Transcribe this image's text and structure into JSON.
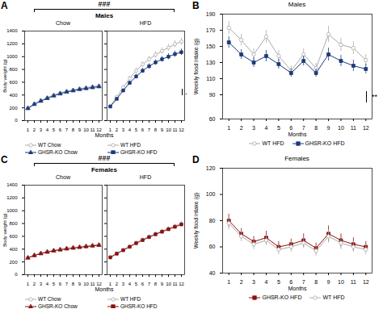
{
  "chart_data": [
    {
      "type": "line",
      "panel_label": "A",
      "title": "Males",
      "annotations": [
        "###"
      ],
      "xlabel": "Months",
      "ylabel": "Body weight (g)",
      "x": [
        1,
        2,
        3,
        4,
        5,
        6,
        7,
        8,
        9,
        10,
        11,
        12
      ],
      "xlim": [
        0.5,
        12.5
      ],
      "xticks": [
        1,
        2,
        3,
        4,
        5,
        6,
        7,
        8,
        9,
        10,
        11,
        12
      ],
      "ylim": [
        0,
        1400
      ],
      "yticks": [
        0,
        200,
        400,
        600,
        800,
        1000,
        1200,
        1400
      ],
      "grid": false,
      "subplots": [
        {
          "title": "Chow",
          "series": [
            {
              "name": "WT Chow",
              "color": "#aaaaaa",
              "marker": "circle-open",
              "values": [
                200,
                265,
                315,
                360,
                400,
                435,
                460,
                480,
                500,
                515,
                530,
                545
              ],
              "errors": [
                8,
                10,
                12,
                13,
                14,
                15,
                15,
                16,
                16,
                17,
                17,
                18
              ]
            },
            {
              "name": "GHSR-KO Chow",
              "color": "#1a3a7a",
              "marker": "triangle",
              "values": [
                190,
                255,
                305,
                348,
                388,
                420,
                448,
                468,
                488,
                503,
                518,
                532
              ],
              "errors": [
                8,
                10,
                11,
                12,
                13,
                14,
                14,
                15,
                15,
                16,
                16,
                17
              ]
            }
          ]
        },
        {
          "title": "HFD",
          "tick_labels": "x",
          "annotations": [
            "."
          ],
          "series": [
            {
              "name": "WT HFD",
              "color": "#aaaaaa",
              "marker": "circle-open",
              "values": [
                230,
                370,
                520,
                660,
                780,
                880,
                960,
                1030,
                1090,
                1140,
                1195,
                1235
              ],
              "errors": [
                15,
                20,
                28,
                33,
                38,
                42,
                45,
                47,
                48,
                50,
                52,
                55
              ]
            },
            {
              "name": "GHSR-KO HFD",
              "color": "#1a3a7a",
              "marker": "square",
              "values": [
                220,
                340,
                470,
                590,
                690,
                780,
                850,
                910,
                960,
                1000,
                1040,
                1070
              ],
              "errors": [
                14,
                18,
                25,
                30,
                34,
                37,
                40,
                42,
                44,
                46,
                47,
                49
              ]
            }
          ]
        }
      ]
    },
    {
      "type": "line",
      "panel_label": "B",
      "title": "Males",
      "annotations": [
        "**"
      ],
      "xlabel": "Months",
      "ylabel": "Weekly food intake (g)",
      "x": [
        1,
        2,
        3,
        4,
        5,
        6,
        7,
        8,
        9,
        10,
        11,
        12
      ],
      "xlim": [
        0.5,
        12.5
      ],
      "xticks": [
        1,
        2,
        3,
        4,
        5,
        6,
        7,
        8,
        9,
        10,
        11,
        12
      ],
      "ylim": [
        60,
        190
      ],
      "yticks": [
        60,
        90,
        110,
        130,
        150,
        170,
        190
      ],
      "grid": false,
      "series": [
        {
          "name": "WT HFD",
          "color": "#aaaaaa",
          "marker": "circle-open",
          "values": [
            173,
            158,
            140,
            162,
            138,
            120,
            140,
            123,
            165,
            152,
            148,
            133
          ],
          "errors": [
            8,
            7,
            7,
            8,
            7,
            6,
            7,
            6,
            10,
            8,
            8,
            7
          ]
        },
        {
          "name": "GHSR-KO HFD",
          "color": "#1a3a7a",
          "marker": "square",
          "values": [
            155,
            140,
            130,
            138,
            128,
            117,
            132,
            117,
            140,
            132,
            126,
            122
          ],
          "errors": [
            7,
            6,
            6,
            7,
            6,
            5,
            6,
            5,
            8,
            7,
            7,
            6
          ]
        }
      ]
    },
    {
      "type": "line",
      "panel_label": "C",
      "title": "Females",
      "annotations": [
        "###"
      ],
      "xlabel": "Months",
      "ylabel": "Body weight (g)",
      "x": [
        1,
        2,
        3,
        4,
        5,
        6,
        7,
        8,
        9,
        10,
        11,
        12
      ],
      "xlim": [
        0.5,
        12.5
      ],
      "xticks": [
        1,
        2,
        3,
        4,
        5,
        6,
        7,
        8,
        9,
        10,
        11,
        12
      ],
      "ylim": [
        0,
        1400
      ],
      "yticks": [
        0,
        200,
        400,
        600,
        800,
        1000,
        1200,
        1400
      ],
      "grid": false,
      "subplots": [
        {
          "title": "Chow",
          "series": [
            {
              "name": "WT Chow",
              "color": "#aaaaaa",
              "marker": "circle-open",
              "values": [
                270,
                308,
                338,
                362,
                382,
                398,
                413,
                425,
                436,
                448,
                460,
                470
              ],
              "errors": [
                9,
                10,
                11,
                12,
                12,
                13,
                13,
                14,
                14,
                15,
                15,
                15
              ]
            },
            {
              "name": "GHSR-KO Chow",
              "color": "#8b1010",
              "marker": "triangle",
              "values": [
                262,
                300,
                330,
                354,
                374,
                390,
                405,
                417,
                428,
                440,
                451,
                461
              ],
              "errors": [
                9,
                10,
                11,
                11,
                12,
                12,
                13,
                13,
                14,
                14,
                15,
                15
              ]
            }
          ]
        },
        {
          "title": "HFD",
          "tick_labels": "x",
          "series": [
            {
              "name": "WT HFD",
              "color": "#aaaaaa",
              "marker": "circle-open",
              "values": [
                278,
                335,
                390,
                445,
                502,
                550,
                598,
                642,
                683,
                722,
                762,
                800
              ],
              "errors": [
                11,
                13,
                15,
                17,
                19,
                21,
                23,
                24,
                25,
                26,
                27,
                29
              ]
            },
            {
              "name": "GHSR-KO HFD",
              "color": "#8b1010",
              "marker": "square",
              "values": [
                270,
                328,
                382,
                436,
                492,
                540,
                587,
                631,
                671,
                710,
                748,
                785
              ],
              "errors": [
                11,
                13,
                14,
                16,
                18,
                20,
                22,
                23,
                24,
                25,
                26,
                28
              ]
            }
          ]
        }
      ]
    },
    {
      "type": "line",
      "panel_label": "D",
      "title": "Females",
      "xlabel": "Months",
      "ylabel": "Weekly food intake (g)",
      "x": [
        1,
        2,
        3,
        4,
        5,
        6,
        7,
        8,
        9,
        10,
        11,
        12
      ],
      "xlim": [
        0.5,
        12.5
      ],
      "xticks": [
        1,
        2,
        3,
        4,
        5,
        6,
        7,
        8,
        9,
        10,
        11,
        12
      ],
      "ylim": [
        40,
        120
      ],
      "yticks": [
        40,
        60,
        80,
        100,
        120
      ],
      "grid": false,
      "series": [
        {
          "name": "GHSR-KO HFD",
          "color": "#8b1010",
          "marker": "square",
          "values": [
            80,
            70,
            64,
            67,
            60,
            62,
            65,
            59,
            70,
            65,
            62,
            60
          ],
          "errors": [
            5,
            4,
            4,
            5,
            4,
            4,
            5,
            4,
            6,
            5,
            5,
            4
          ]
        },
        {
          "name": "WT HFD",
          "color": "#aaaaaa",
          "marker": "circle-open",
          "values": [
            78,
            68,
            62,
            65,
            58,
            60,
            63,
            57,
            68,
            63,
            60,
            58
          ],
          "errors": [
            5,
            4,
            4,
            4,
            4,
            4,
            4,
            4,
            5,
            5,
            4,
            4
          ]
        }
      ]
    }
  ]
}
